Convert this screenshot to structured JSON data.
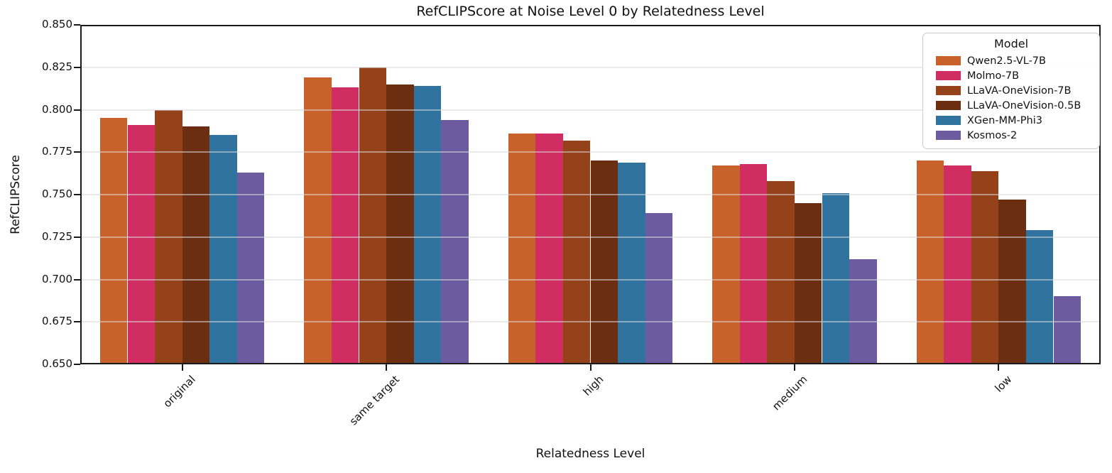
{
  "chart_data": {
    "type": "bar",
    "title": "RefCLIPScore at Noise Level 0 by Relatedness Level",
    "xlabel": "Relatedness Level",
    "ylabel": "RefCLIPScore",
    "ylim": [
      0.65,
      0.85
    ],
    "ytick_step": 0.025,
    "ytick_labels": [
      "0.850",
      "0.825",
      "0.800",
      "0.775",
      "0.750",
      "0.725",
      "0.700",
      "0.675",
      "0.650"
    ],
    "categories": [
      "original",
      "same target",
      "high",
      "medium",
      "low"
    ],
    "grid": true,
    "grid_color": "#d9d9d9",
    "spine_color": "#1a1a1a",
    "legend_title": "Model",
    "legend_position": "upper right",
    "series": [
      {
        "name": "Qwen2.5-VL-7B",
        "color": "#C9612A",
        "values": [
          0.795,
          0.819,
          0.786,
          0.767,
          0.77
        ]
      },
      {
        "name": "Molmo-7B",
        "color": "#D02E62",
        "values": [
          0.791,
          0.813,
          0.786,
          0.768,
          0.767
        ]
      },
      {
        "name": "LLaVA-OneVision-7B",
        "color": "#954119",
        "values": [
          0.8,
          0.825,
          0.782,
          0.758,
          0.764
        ]
      },
      {
        "name": "LLaVA-OneVision-0.5B",
        "color": "#6B2E11",
        "values": [
          0.79,
          0.815,
          0.77,
          0.745,
          0.747
        ]
      },
      {
        "name": "XGen-MM-Phi3",
        "color": "#2F739E",
        "values": [
          0.785,
          0.814,
          0.769,
          0.751,
          0.729
        ]
      },
      {
        "name": "Kosmos-2",
        "color": "#6C5B9F",
        "values": [
          0.763,
          0.794,
          0.739,
          0.712,
          0.69
        ]
      }
    ]
  }
}
